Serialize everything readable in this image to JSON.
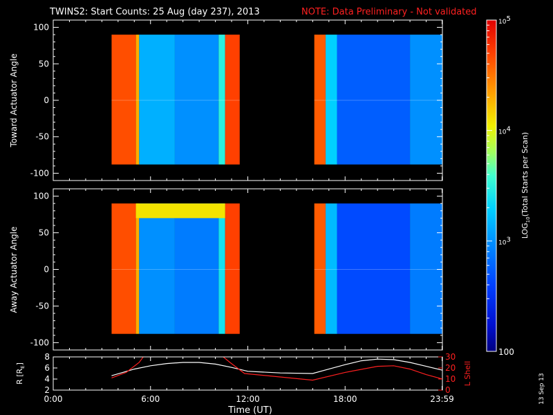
{
  "title": {
    "main": "TWINS2: Start Counts: 25 Aug (day 237), 2013",
    "note": "NOTE: Data Preliminary - Not validated",
    "note_color": "#ff2020"
  },
  "stamp": "13 Sep 13",
  "colors": {
    "ephemeris_r": "#ffffff",
    "ephemeris_lshell": "#ff2020",
    "background": "#000000",
    "axes": "#ffffff"
  },
  "colorbar": {
    "label": "LOG10(Total Starts per Scan)",
    "label_parts": {
      "pre": "LOG",
      "sub": "10",
      "post": "(Total Starts per Scan)"
    },
    "scale": "log",
    "range": [
      100,
      100000
    ],
    "tick_labels": [
      {
        "value": 100000,
        "base": "10",
        "exp": "5"
      },
      {
        "value": 10000,
        "base": "10",
        "exp": "4"
      },
      {
        "value": 1000,
        "base": "10",
        "exp": "3"
      },
      {
        "value": 100,
        "base": "100",
        "exp": ""
      }
    ]
  },
  "xaxis": {
    "label": "Time (UT)",
    "range_hours": [
      0,
      24
    ],
    "ticks": [
      {
        "hour": 0,
        "label": "0:00"
      },
      {
        "hour": 6,
        "label": "6:00"
      },
      {
        "hour": 12,
        "label": "12:00"
      },
      {
        "hour": 18,
        "label": "18:00"
      },
      {
        "hour": 23.98,
        "label": "23:59"
      }
    ]
  },
  "chart_data": [
    {
      "type": "heatmap",
      "ylabel": "Toward Actuator Angle",
      "ylim": [
        -110,
        110
      ],
      "yticks": [
        100,
        50,
        0,
        -50,
        -100
      ],
      "x_unit": "hours UT",
      "y_unit": "degrees",
      "data_angle_range": [
        -88,
        90
      ],
      "intervals": [
        {
          "start": 3.6,
          "end": 11.5,
          "segments": [
            {
              "from": 3.6,
              "to": 5.1,
              "log": 4.65
            },
            {
              "from": 5.1,
              "to": 5.3,
              "log": 4.3
            },
            {
              "from": 5.3,
              "to": 7.5,
              "log": 3.15
            },
            {
              "from": 7.5,
              "to": 10.2,
              "log": 3.0
            },
            {
              "from": 10.2,
              "to": 10.6,
              "log": 3.5
            },
            {
              "from": 10.6,
              "to": 11.5,
              "log": 4.7
            }
          ]
        },
        {
          "start": 16.1,
          "end": 24.0,
          "segments": [
            {
              "from": 16.1,
              "to": 16.8,
              "log": 4.6
            },
            {
              "from": 16.8,
              "to": 17.5,
              "log": 3.3
            },
            {
              "from": 17.5,
              "to": 22.0,
              "log": 2.75
            },
            {
              "from": 22.0,
              "to": 24.0,
              "log": 3.0
            }
          ]
        }
      ]
    },
    {
      "type": "heatmap",
      "ylabel": "Away Actuator Angle",
      "ylim": [
        -110,
        110
      ],
      "yticks": [
        100,
        50,
        0,
        -50,
        -100
      ],
      "x_unit": "hours UT",
      "y_unit": "degrees",
      "data_angle_range": [
        -88,
        90
      ],
      "intervals": [
        {
          "start": 3.6,
          "end": 11.5,
          "segments": [
            {
              "from": 3.6,
              "to": 5.1,
              "log": 4.65
            },
            {
              "from": 5.1,
              "to": 5.3,
              "log": 4.3
            },
            {
              "from": 5.3,
              "to": 7.5,
              "log": 3.0
            },
            {
              "from": 7.5,
              "to": 10.2,
              "log": 2.9
            },
            {
              "from": 10.2,
              "to": 10.6,
              "log": 3.4
            },
            {
              "from": 10.6,
              "to": 11.5,
              "log": 4.7
            }
          ],
          "band": {
            "from": 5.1,
            "to": 10.6,
            "angle_from": 70,
            "angle_to": 90,
            "log": 4.1
          }
        },
        {
          "start": 16.1,
          "end": 24.0,
          "segments": [
            {
              "from": 16.1,
              "to": 16.8,
              "log": 4.6
            },
            {
              "from": 16.8,
              "to": 17.5,
              "log": 3.2
            },
            {
              "from": 17.5,
              "to": 22.0,
              "log": 2.65
            },
            {
              "from": 22.0,
              "to": 24.0,
              "log": 2.9
            }
          ]
        }
      ]
    },
    {
      "type": "line",
      "ylabel": "R [RE]",
      "ylabel_parts": {
        "pre": "R [R",
        "sub": "E",
        "post": "]"
      },
      "ylim": [
        2,
        8
      ],
      "yticks": [
        8,
        6,
        4,
        2
      ],
      "y2label": "L Shell",
      "y2lim": [
        0,
        30
      ],
      "y2ticks": [
        30,
        20,
        10,
        0
      ],
      "series": [
        {
          "axis": "left",
          "x": [
            3.6,
            5,
            6,
            7,
            8,
            9,
            10,
            11,
            12,
            14,
            16,
            17,
            18,
            19,
            20,
            21,
            22,
            23,
            24
          ],
          "y": [
            4.6,
            5.8,
            6.4,
            6.8,
            7.0,
            7.0,
            6.7,
            6.1,
            5.4,
            5.1,
            5.0,
            5.8,
            6.6,
            7.3,
            7.6,
            7.5,
            7.0,
            6.3,
            5.6
          ]
        },
        {
          "axis": "right",
          "x": [
            3.6,
            4.5,
            5.3,
            5.6,
            10.4,
            10.9,
            11.8,
            16.0,
            18,
            20,
            21,
            22,
            23,
            24
          ],
          "y": [
            11,
            16,
            25,
            31,
            31,
            25,
            15,
            9,
            16,
            21.5,
            22,
            19,
            14,
            10
          ]
        }
      ]
    }
  ]
}
